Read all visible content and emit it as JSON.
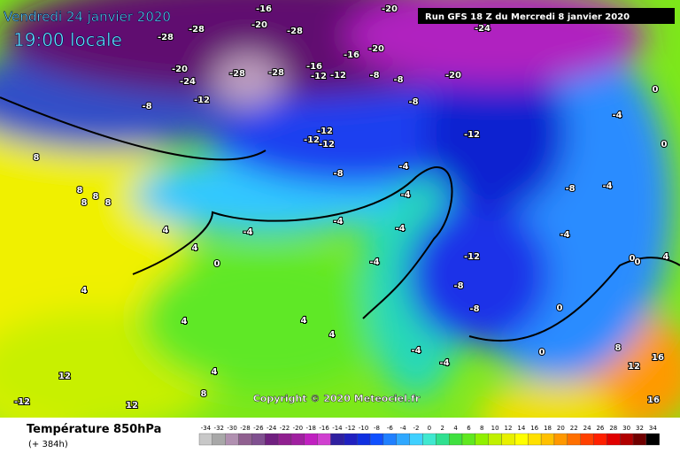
{
  "header": {
    "date": "Vendredi 24 janvier 2020",
    "time": "19:00 locale",
    "run": "Run GFS 18 Z du Mercredi 8 janvier 2020"
  },
  "copyright": "Copyright © 2020 Meteociel.fr",
  "footer": {
    "title": "Température 850hPa",
    "lead": "(+ 384h)"
  },
  "legend": {
    "values": [
      -34,
      -32,
      -30,
      -28,
      -26,
      -24,
      -22,
      -20,
      -18,
      -16,
      -14,
      -12,
      -10,
      -8,
      -6,
      -4,
      -2,
      0,
      2,
      4,
      6,
      8,
      10,
      12,
      14,
      16,
      18,
      20,
      22,
      24,
      26,
      28,
      30,
      32,
      34
    ]
  },
  "map": {
    "labels": [
      -16,
      -20,
      -28,
      -28,
      -28,
      -20,
      -24,
      -20,
      -24,
      -28,
      -28,
      -16,
      -12,
      -12,
      -16,
      -20,
      -8,
      -8,
      -20,
      -12,
      -8,
      -8,
      -12,
      -12,
      -12,
      -12,
      -8,
      -4,
      -4,
      -4,
      -4,
      0,
      -4,
      -4,
      8,
      8,
      8,
      8,
      8,
      4,
      4,
      4,
      4,
      4,
      4,
      4,
      12,
      8,
      -12,
      -8,
      -8,
      -4,
      -4,
      0,
      0,
      -4,
      -8,
      -4,
      -4,
      0,
      0,
      0,
      0,
      4,
      8,
      12,
      16,
      16,
      -12,
      12
    ]
  }
}
